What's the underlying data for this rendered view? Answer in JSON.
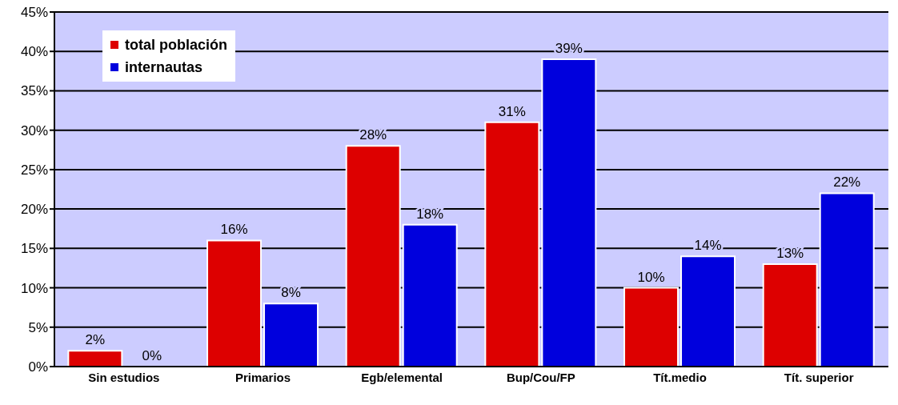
{
  "chart_data": {
    "type": "bar",
    "categories": [
      "Sin estudios",
      "Primarios",
      "Egb/elemental",
      "Bup/Cou/FP",
      "Tít.medio",
      "Tít. superior"
    ],
    "series": [
      {
        "name": "total población",
        "color": "#dd0000",
        "values": [
          2,
          16,
          28,
          31,
          10,
          13
        ],
        "value_labels": [
          "2%",
          "16%",
          "28%",
          "31%",
          "10%",
          "13%"
        ]
      },
      {
        "name": "internautas",
        "color": "#0000dd",
        "values": [
          0,
          8,
          18,
          39,
          14,
          22
        ],
        "value_labels": [
          "0%",
          "8%",
          "18%",
          "39%",
          "14%",
          "22%"
        ]
      }
    ],
    "ylim": [
      0,
      45
    ],
    "yticks": [
      {
        "value": 0,
        "label": "0%"
      },
      {
        "value": 5,
        "label": "5%"
      },
      {
        "value": 10,
        "label": "10%"
      },
      {
        "value": 15,
        "label": "15%"
      },
      {
        "value": 20,
        "label": "20%"
      },
      {
        "value": 25,
        "label": "25%"
      },
      {
        "value": 30,
        "label": "30%"
      },
      {
        "value": 35,
        "label": "35%"
      },
      {
        "value": 40,
        "label": "40%"
      },
      {
        "value": 45,
        "label": "45%"
      }
    ],
    "grid": "y",
    "legend": "top left"
  }
}
